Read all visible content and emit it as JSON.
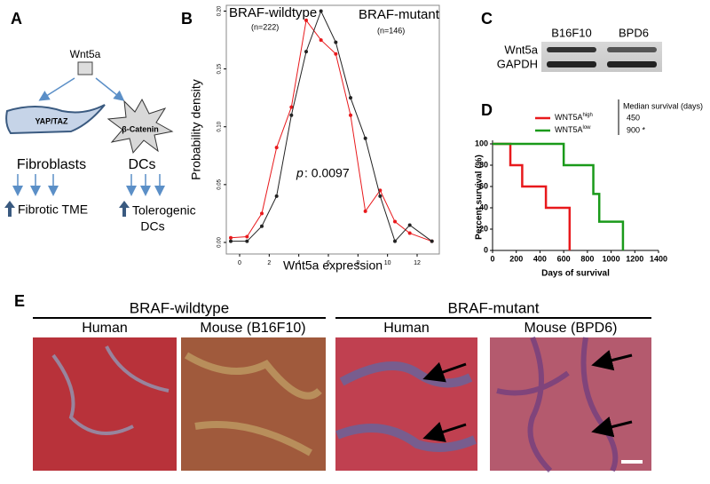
{
  "panels": {
    "A": {
      "label": "A",
      "ligand": "Wnt5a",
      "receptor_left": "YAP/TAZ",
      "receptor_right": "β-Catenin",
      "cell_left": "Fibroblasts",
      "cell_right": "DCs",
      "outcome_left": "Fibrotic TME",
      "outcome_right": [
        "Tolerogenic",
        "DCs"
      ]
    },
    "B": {
      "label": "B"
    },
    "C": {
      "label": "C",
      "lanes": [
        "B16F10",
        "BPD6"
      ],
      "rows": [
        "Wnt5a",
        "GAPDH"
      ]
    },
    "D": {
      "label": "D",
      "legend_title": "Median survival (days)"
    },
    "E": {
      "label": "E",
      "groups": [
        {
          "title": "BRAF-wildtype",
          "images": [
            "Human",
            "Mouse (B16F10)"
          ]
        },
        {
          "title": "BRAF-mutant",
          "images": [
            "Human",
            "Mouse (BPD6)"
          ]
        }
      ]
    }
  },
  "chart_data": [
    {
      "type": "line",
      "markers": true,
      "x_label": "Wnt5a expression",
      "y_label": "Probability density",
      "x": [
        -0.6,
        0.5,
        1.5,
        2.5,
        3.5,
        4.5,
        5.5,
        6.5,
        7.5,
        8.5,
        9.5,
        10.5,
        11.5,
        13
      ],
      "xlim": [
        -0.9,
        13.5
      ],
      "xticks": [
        0,
        2,
        4,
        6,
        8,
        10,
        12
      ],
      "ylim": [
        -0.01,
        0.205
      ],
      "yticks": [
        {
          "value": 0,
          "label": "0.00"
        },
        {
          "value": 0.05,
          "label": "0.05"
        },
        {
          "value": 0.1,
          "label": "0.10"
        },
        {
          "value": 0.15,
          "label": "0.15"
        },
        {
          "value": 0.2,
          "label": "0.20"
        }
      ],
      "series": [
        {
          "name": "BRAF-wildtype",
          "n_label": "(n=222)",
          "color": "#e8191c",
          "values": [
            0.004,
            0.005,
            0.025,
            0.082,
            0.117,
            0.192,
            0.175,
            0.163,
            0.11,
            0.027,
            0.045,
            0.018,
            0.008,
            0.001
          ]
        },
        {
          "name": "BRAF-mutant",
          "n_label": "(n=146)",
          "color": "#222222",
          "values": [
            0.001,
            0.001,
            0.014,
            0.04,
            0.11,
            0.165,
            0.2,
            0.173,
            0.125,
            0.09,
            0.04,
            0.001,
            0.015,
            0.001
          ]
        }
      ],
      "annotation": {
        "italic": "p",
        "text": ": 0.0097"
      }
    },
    {
      "type": "line",
      "markers": false,
      "x_label": "Days of survival",
      "y_label": "Percent survival (%)",
      "xlim": [
        0,
        1400
      ],
      "xticks": [
        0,
        200,
        400,
        600,
        800,
        1000,
        1200,
        1400
      ],
      "ylim": [
        0,
        100
      ],
      "yticks": [
        0,
        20,
        40,
        60,
        80,
        100
      ],
      "series": [
        {
          "name": "WNT5A",
          "superscript": "high",
          "median": "450",
          "color": "#e8191c",
          "x": [
            0,
            150,
            150,
            250,
            250,
            450,
            450,
            650,
            650
          ],
          "values": [
            100,
            100,
            80,
            80,
            60,
            60,
            40,
            40,
            0
          ]
        },
        {
          "name": "WNT5A",
          "superscript": "low",
          "median": "900 *",
          "color": "#1a9a1a",
          "x": [
            0,
            600,
            600,
            850,
            850,
            900,
            900,
            1100,
            1100
          ],
          "values": [
            100,
            100,
            80,
            80,
            53,
            53,
            27,
            27,
            0
          ]
        }
      ]
    }
  ]
}
